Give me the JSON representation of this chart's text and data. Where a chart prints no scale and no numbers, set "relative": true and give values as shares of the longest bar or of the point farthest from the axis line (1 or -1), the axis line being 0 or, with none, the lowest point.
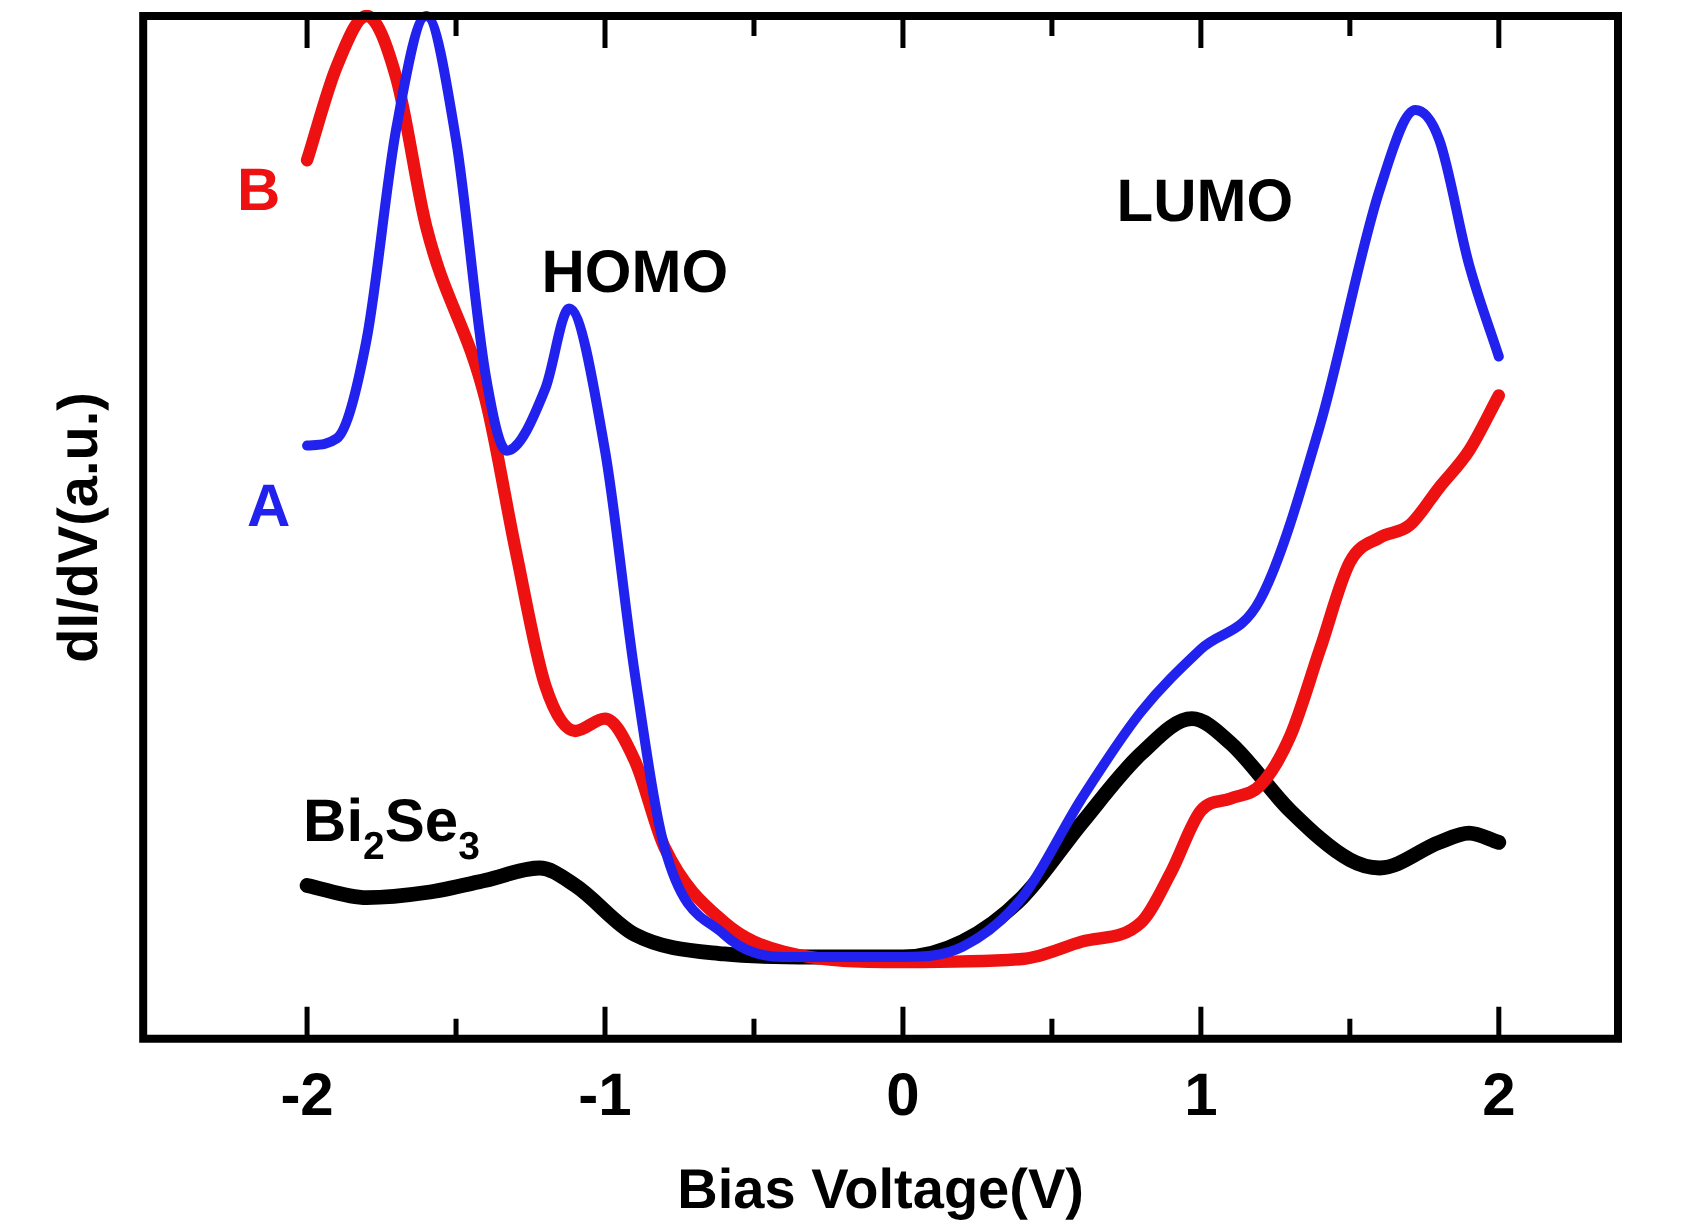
{
  "chart_data": {
    "type": "line",
    "relative": true,
    "xlabel": "Bias Voltage(V)",
    "ylabel": "dI/dV(a.u.)",
    "annotations": [
      "HOMO",
      "LUMO"
    ],
    "xlim": [
      -2.55,
      2.4
    ],
    "xticks": [
      -2,
      {
        "value": -1.5,
        "label": null
      },
      -1,
      {
        "value": -0.5,
        "label": null
      },
      0,
      {
        "value": 0.5,
        "label": null
      },
      1,
      {
        "value": 1.5,
        "label": null
      },
      2
    ],
    "grid": false,
    "legend": false,
    "marker": "none",
    "line_style": "solid",
    "series": [
      {
        "name": "A",
        "color": "#2222ee",
        "x": [
          -2,
          -1.9,
          -1.8,
          -1.7,
          -1.6,
          -1.5,
          -1.4,
          -1.33,
          -1.2,
          -1.12,
          -1.0,
          -0.9,
          -0.8,
          -0.6,
          -0.4,
          0,
          0.2,
          0.4,
          0.6,
          0.8,
          1.0,
          1.2,
          1.4,
          1.6,
          1.72,
          1.8,
          1.9,
          2.0
        ],
        "values": [
          0.58,
          0.587,
          0.684,
          0.891,
          1.0,
          0.879,
          0.648,
          0.575,
          0.636,
          0.714,
          0.575,
          0.357,
          0.187,
          0.102,
          0.08,
          0.08,
          0.09,
          0.138,
          0.235,
          0.32,
          0.381,
          0.43,
          0.6,
          0.83,
          0.908,
          0.879,
          0.757,
          0.667
        ]
      },
      {
        "name": "B",
        "color": "#ee1111",
        "x": [
          -2,
          -1.9,
          -1.8,
          -1.7,
          -1.6,
          -1.4,
          -1.3,
          -1.2,
          -1.1,
          -1.0,
          -0.9,
          -0.8,
          -0.6,
          -0.4,
          0,
          0.4,
          0.6,
          0.8,
          0.9,
          1.0,
          1.1,
          1.2,
          1.3,
          1.4,
          1.5,
          1.6,
          1.7,
          1.8,
          1.9,
          2.0
        ],
        "values": [
          0.859,
          0.951,
          1.0,
          0.939,
          0.794,
          0.624,
          0.478,
          0.345,
          0.301,
          0.313,
          0.272,
          0.187,
          0.114,
          0.085,
          0.075,
          0.078,
          0.095,
          0.114,
          0.163,
          0.223,
          0.235,
          0.248,
          0.296,
          0.381,
          0.466,
          0.49,
          0.502,
          0.539,
          0.575,
          0.629
        ]
      },
      {
        "name": "Bi$_{2}$Se$_{3}$",
        "color": "#000000",
        "x": [
          -2,
          -1.8,
          -1.6,
          -1.4,
          -1.22,
          -1.1,
          -0.9,
          -0.6,
          -0.3,
          0,
          0.2,
          0.4,
          0.6,
          0.8,
          0.97,
          1.1,
          1.3,
          1.5,
          1.6,
          1.8,
          1.9,
          2.0
        ],
        "values": [
          0.15,
          0.138,
          0.143,
          0.155,
          0.167,
          0.15,
          0.102,
          0.083,
          0.08,
          0.08,
          0.095,
          0.138,
          0.211,
          0.279,
          0.313,
          0.289,
          0.223,
          0.175,
          0.167,
          0.192,
          0.201,
          0.192
        ]
      }
    ]
  }
}
